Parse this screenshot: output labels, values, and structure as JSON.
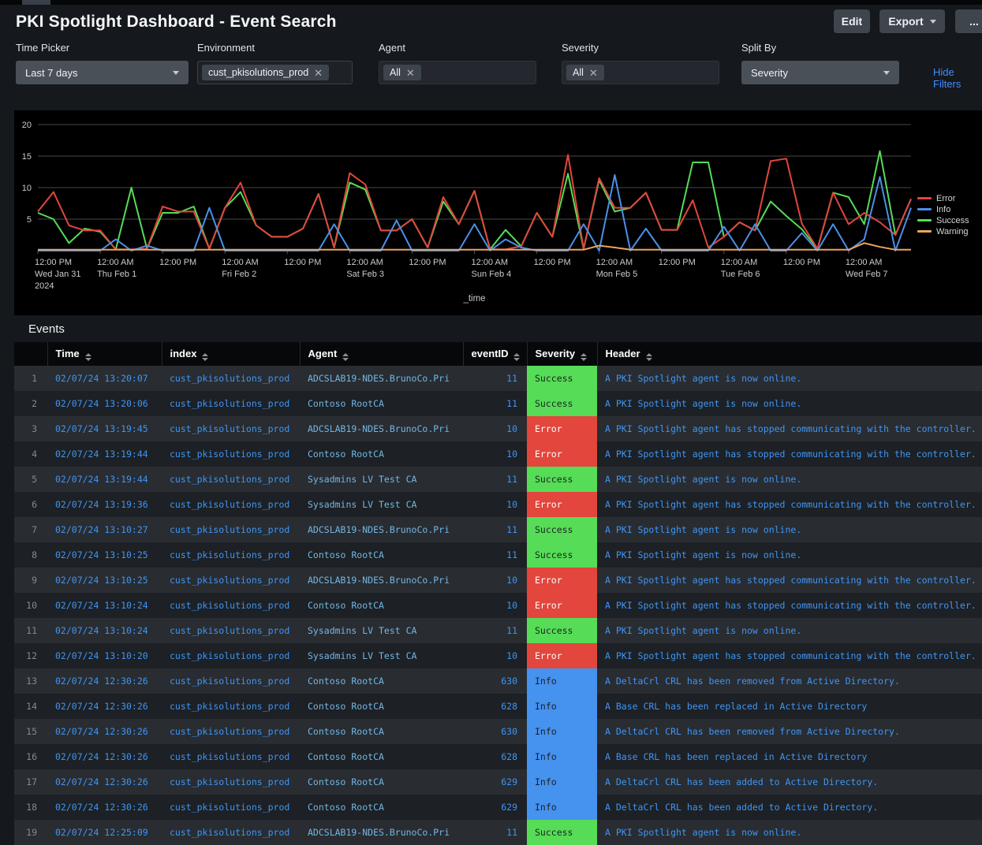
{
  "window": {
    "title": "PKI Spotlight Dashboard - Event Search"
  },
  "toolbar": {
    "edit_label": "Edit",
    "export_label": "Export",
    "more_label": "..."
  },
  "filters": {
    "hide_filters_label": "Hide Filters",
    "time_picker": {
      "label": "Time Picker",
      "value": "Last 7 days"
    },
    "environment": {
      "label": "Environment",
      "token": "cust_pkisolutions_prod"
    },
    "agent": {
      "label": "Agent",
      "token": "All"
    },
    "severity": {
      "label": "Severity",
      "token": "All"
    },
    "split_by": {
      "label": "Split By",
      "value": "Severity"
    }
  },
  "chart_data": {
    "type": "line",
    "xlabel": "_time",
    "ylim": [
      0,
      20
    ],
    "yticks": [
      5,
      10,
      15,
      20
    ],
    "grid": true,
    "legend_position": "right",
    "tick_every": 4,
    "x_ticks": [
      {
        "time": "12:00 PM",
        "date": "Wed Jan 31",
        "year": "2024"
      },
      {
        "time": "12:00 AM",
        "date": "Thu Feb 1"
      },
      {
        "time": "12:00 PM"
      },
      {
        "time": "12:00 AM",
        "date": "Fri Feb 2"
      },
      {
        "time": "12:00 PM"
      },
      {
        "time": "12:00 AM",
        "date": "Sat Feb 3"
      },
      {
        "time": "12:00 PM"
      },
      {
        "time": "12:00 AM",
        "date": "Sun Feb 4"
      },
      {
        "time": "12:00 PM"
      },
      {
        "time": "12:00 AM",
        "date": "Mon Feb 5"
      },
      {
        "time": "12:00 PM"
      },
      {
        "time": "12:00 AM",
        "date": "Tue Feb 6"
      },
      {
        "time": "12:00 PM"
      },
      {
        "time": "12:00 AM",
        "date": "Wed Feb 7"
      }
    ],
    "series": [
      {
        "name": "Error",
        "color": "#e2463c",
        "values": [
          6.2,
          9.3,
          4,
          3.2,
          3.2,
          0.2,
          0.2,
          0.3,
          7,
          6.2,
          6.2,
          0.3,
          6.8,
          10.8,
          4,
          2.2,
          2.2,
          3.5,
          9,
          0.5,
          12.3,
          10.5,
          3.2,
          3.2,
          5,
          0.5,
          8.5,
          4.2,
          9.5,
          0.2,
          0.2,
          0.7,
          6,
          2.2,
          15.2,
          0.3,
          11.5,
          6.8,
          6.8,
          9.2,
          3.3,
          3.3,
          8,
          0.5,
          2.2,
          4.5,
          3.2,
          14.2,
          14.6,
          4.3,
          0.3,
          9.2,
          4.2,
          6,
          4.5,
          2.5,
          8.2
        ]
      },
      {
        "name": "Info",
        "color": "#4a90e8",
        "values": [
          0,
          0,
          0,
          0,
          0,
          1.8,
          0,
          0.8,
          0,
          0,
          0,
          6.8,
          0,
          0,
          0,
          0,
          0,
          0,
          0,
          4.2,
          0,
          0,
          0,
          4.8,
          0,
          0,
          0,
          0,
          4.2,
          0,
          1.8,
          0.5,
          0,
          0,
          0,
          4.2,
          0,
          12,
          0,
          3.5,
          0,
          0,
          0,
          0,
          3.8,
          0,
          4.2,
          0,
          0,
          2.8,
          0,
          4.2,
          0,
          1.8,
          11.7,
          0,
          6.8
        ]
      },
      {
        "name": "Success",
        "color": "#56dc56",
        "values": [
          6,
          5,
          1.2,
          3.5,
          3,
          0.2,
          10,
          0.3,
          6,
          6,
          7,
          0.3,
          6.8,
          9.3,
          4,
          2.2,
          2.2,
          3.5,
          9,
          0.5,
          10.8,
          9.7,
          3.2,
          3.2,
          5,
          0.5,
          7.8,
          4.2,
          9.5,
          0.2,
          3.3,
          0.7,
          6,
          2.2,
          12.2,
          0.3,
          11.2,
          6.2,
          6.8,
          9.2,
          3.3,
          3.3,
          14,
          14,
          2.2,
          4.5,
          3.2,
          7.8,
          5.5,
          3.4,
          0.3,
          9.2,
          8.5,
          4.2,
          15.8,
          2.5,
          8.2
        ]
      },
      {
        "name": "Warning",
        "color": "#eda35c",
        "values": [
          0.15,
          0.15,
          0.15,
          0.15,
          0.15,
          0.15,
          0.15,
          0.15,
          0.15,
          0.15,
          0.15,
          0.15,
          0.15,
          0.15,
          0.15,
          0.15,
          0.15,
          0.15,
          0.15,
          0.15,
          0.15,
          0.15,
          0.15,
          0.15,
          0.15,
          0.15,
          0.15,
          0.15,
          0.15,
          0.15,
          0.15,
          0.15,
          0.15,
          0.15,
          0.15,
          0.15,
          0.8,
          0.5,
          0.15,
          0.15,
          0.15,
          0.15,
          0.15,
          0.15,
          0.15,
          0.15,
          0.15,
          0.15,
          0.15,
          0.15,
          0.15,
          0.15,
          0.15,
          1.2,
          0.6,
          0.15,
          0.15
        ]
      }
    ]
  },
  "events": {
    "title": "Events",
    "columns": [
      "Time",
      "index",
      "Agent",
      "eventID",
      "Severity",
      "Header"
    ],
    "severity_colors": {
      "Success": "#56dc56",
      "Error": "#e2463c",
      "Info": "#4592ef"
    },
    "severity_text_colors": {
      "Success": "#1d2126",
      "Error": "#ffffff",
      "Info": "#1d2126"
    },
    "rows": [
      {
        "n": 1,
        "time": "02/07/24 13:20:07",
        "index": "cust_pkisolutions_prod",
        "agent": "ADCSLAB19-NDES.BrunoCo.Pri",
        "eventID": 11,
        "severity": "Success",
        "header": "A PKI Spotlight agent is now online."
      },
      {
        "n": 2,
        "time": "02/07/24 13:20:06",
        "index": "cust_pkisolutions_prod",
        "agent": "Contoso RootCA",
        "eventID": 11,
        "severity": "Success",
        "header": "A PKI Spotlight agent is now online."
      },
      {
        "n": 3,
        "time": "02/07/24 13:19:45",
        "index": "cust_pkisolutions_prod",
        "agent": "ADCSLAB19-NDES.BrunoCo.Pri",
        "eventID": 10,
        "severity": "Error",
        "header": "A PKI Spotlight agent has stopped communicating with the controller."
      },
      {
        "n": 4,
        "time": "02/07/24 13:19:44",
        "index": "cust_pkisolutions_prod",
        "agent": "Contoso RootCA",
        "eventID": 10,
        "severity": "Error",
        "header": "A PKI Spotlight agent has stopped communicating with the controller."
      },
      {
        "n": 5,
        "time": "02/07/24 13:19:44",
        "index": "cust_pkisolutions_prod",
        "agent": "Sysadmins LV Test CA",
        "eventID": 11,
        "severity": "Success",
        "header": "A PKI Spotlight agent is now online."
      },
      {
        "n": 6,
        "time": "02/07/24 13:19:36",
        "index": "cust_pkisolutions_prod",
        "agent": "Sysadmins LV Test CA",
        "eventID": 10,
        "severity": "Error",
        "header": "A PKI Spotlight agent has stopped communicating with the controller."
      },
      {
        "n": 7,
        "time": "02/07/24 13:10:27",
        "index": "cust_pkisolutions_prod",
        "agent": "ADCSLAB19-NDES.BrunoCo.Pri",
        "eventID": 11,
        "severity": "Success",
        "header": "A PKI Spotlight agent is now online."
      },
      {
        "n": 8,
        "time": "02/07/24 13:10:25",
        "index": "cust_pkisolutions_prod",
        "agent": "Contoso RootCA",
        "eventID": 11,
        "severity": "Success",
        "header": "A PKI Spotlight agent is now online."
      },
      {
        "n": 9,
        "time": "02/07/24 13:10:25",
        "index": "cust_pkisolutions_prod",
        "agent": "ADCSLAB19-NDES.BrunoCo.Pri",
        "eventID": 10,
        "severity": "Error",
        "header": "A PKI Spotlight agent has stopped communicating with the controller."
      },
      {
        "n": 10,
        "time": "02/07/24 13:10:24",
        "index": "cust_pkisolutions_prod",
        "agent": "Contoso RootCA",
        "eventID": 10,
        "severity": "Error",
        "header": "A PKI Spotlight agent has stopped communicating with the controller."
      },
      {
        "n": 11,
        "time": "02/07/24 13:10:24",
        "index": "cust_pkisolutions_prod",
        "agent": "Sysadmins LV Test CA",
        "eventID": 11,
        "severity": "Success",
        "header": "A PKI Spotlight agent is now online."
      },
      {
        "n": 12,
        "time": "02/07/24 13:10:20",
        "index": "cust_pkisolutions_prod",
        "agent": "Sysadmins LV Test CA",
        "eventID": 10,
        "severity": "Error",
        "header": "A PKI Spotlight agent has stopped communicating with the controller."
      },
      {
        "n": 13,
        "time": "02/07/24 12:30:26",
        "index": "cust_pkisolutions_prod",
        "agent": "Contoso RootCA",
        "eventID": 630,
        "severity": "Info",
        "header": "A DeltaCrl CRL has been removed from Active Directory."
      },
      {
        "n": 14,
        "time": "02/07/24 12:30:26",
        "index": "cust_pkisolutions_prod",
        "agent": "Contoso RootCA",
        "eventID": 628,
        "severity": "Info",
        "header": "A Base CRL has been replaced in Active Directory"
      },
      {
        "n": 15,
        "time": "02/07/24 12:30:26",
        "index": "cust_pkisolutions_prod",
        "agent": "Contoso RootCA",
        "eventID": 630,
        "severity": "Info",
        "header": "A DeltaCrl CRL has been removed from Active Directory."
      },
      {
        "n": 16,
        "time": "02/07/24 12:30:26",
        "index": "cust_pkisolutions_prod",
        "agent": "Contoso RootCA",
        "eventID": 628,
        "severity": "Info",
        "header": "A Base CRL has been replaced in Active Directory"
      },
      {
        "n": 17,
        "time": "02/07/24 12:30:26",
        "index": "cust_pkisolutions_prod",
        "agent": "Contoso RootCA",
        "eventID": 629,
        "severity": "Info",
        "header": "A DeltaCrl CRL has been added to Active Directory."
      },
      {
        "n": 18,
        "time": "02/07/24 12:30:26",
        "index": "cust_pkisolutions_prod",
        "agent": "Contoso RootCA",
        "eventID": 629,
        "severity": "Info",
        "header": "A DeltaCrl CRL has been added to Active Directory."
      },
      {
        "n": 19,
        "time": "02/07/24 12:25:09",
        "index": "cust_pkisolutions_prod",
        "agent": "ADCSLAB19-NDES.BrunoCo.Pri",
        "eventID": 11,
        "severity": "Success",
        "header": "A PKI Spotlight agent is now online."
      }
    ]
  }
}
